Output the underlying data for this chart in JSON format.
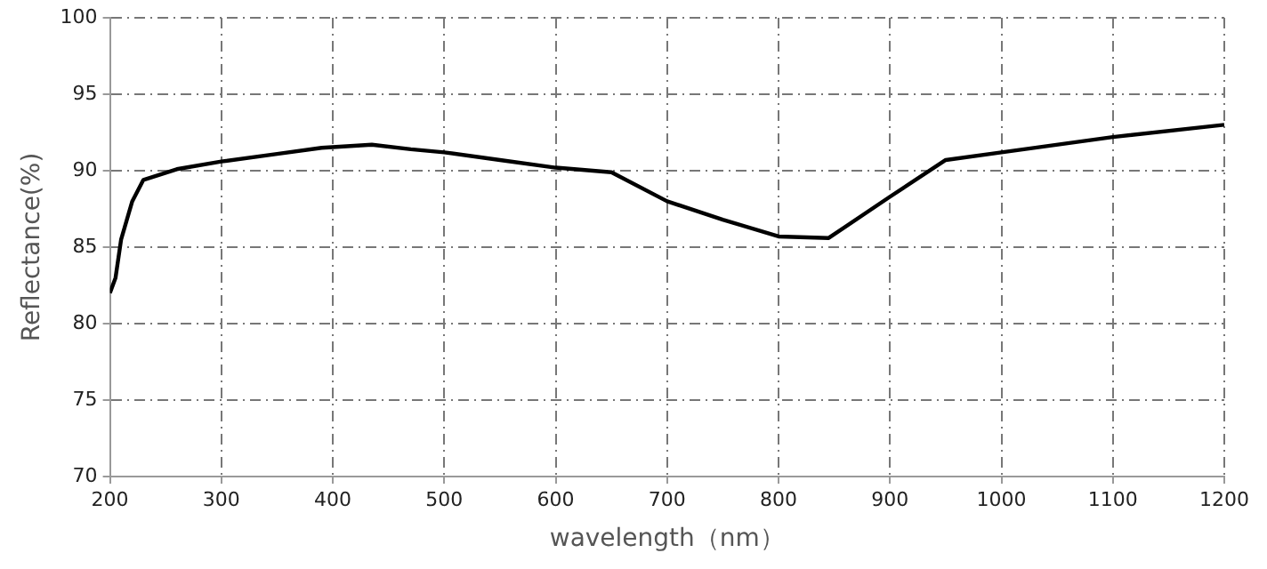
{
  "chart_data": {
    "type": "line",
    "xlabel": "wavelength（nm）",
    "ylabel": "Reflectance(%)",
    "x": [
      200,
      205,
      210,
      220,
      230,
      260,
      300,
      350,
      390,
      435,
      470,
      500,
      550,
      600,
      650,
      700,
      750,
      800,
      845,
      900,
      950,
      1000,
      1100,
      1200
    ],
    "series": [
      {
        "color": "#000000",
        "values": [
          82,
          83,
          85.5,
          88,
          89.4,
          90.1,
          90.6,
          91.1,
          91.5,
          91.7,
          91.4,
          91.2,
          90.7,
          90.2,
          89.9,
          88,
          86.8,
          85.7,
          85.6,
          88.3,
          90.7,
          91.2,
          92.2,
          93
        ]
      }
    ],
    "xlim": [
      200,
      1200
    ],
    "xticks": [
      200,
      300,
      400,
      500,
      600,
      700,
      800,
      900,
      1000,
      1100,
      1200
    ],
    "ylim": [
      70,
      100
    ],
    "yticks": [
      70,
      75,
      80,
      85,
      90,
      95,
      100
    ],
    "grid": true,
    "legend": false,
    "marker": "none",
    "line_style": "solid"
  }
}
